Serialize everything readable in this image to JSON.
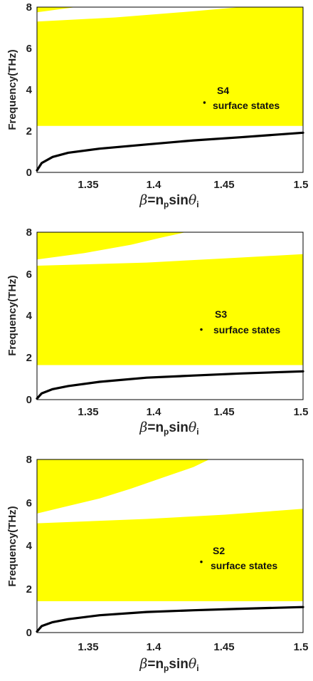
{
  "colors": {
    "band": "#ffff00",
    "curve": "#000000",
    "frame": "#000000"
  },
  "x_label": {
    "beta": "β",
    "eq": "=n",
    "p": "p",
    "sin": "sin",
    "theta": "θ",
    "i": "i"
  },
  "y_label": "Frequency(THz)",
  "x_ticks": [
    "1.35",
    "1.4",
    "1.45",
    "1.5"
  ],
  "y_ticks": [
    "0",
    "2",
    "4",
    "6",
    "8"
  ],
  "chart_data": [
    {
      "type": "area",
      "xlim": [
        1.33,
        1.5
      ],
      "ylim": [
        0,
        8
      ],
      "xlabel": "β=n_p sinθ_i",
      "ylabel": "Frequency(THz)",
      "annotation": {
        "title": "S4",
        "subtitle": "surface states",
        "point": [
          1.437,
          3.38
        ]
      },
      "bands": [
        {
          "lower": [
            [
              1.33,
              2.25
            ],
            [
              1.5,
              2.25
            ]
          ],
          "upper": [
            [
              1.33,
              7.3
            ],
            [
              1.38,
              7.5
            ],
            [
              1.43,
              7.8
            ],
            [
              1.46,
              8.0
            ],
            [
              1.5,
              8.0
            ]
          ]
        },
        {
          "lower": [
            [
              1.33,
              7.75
            ],
            [
              1.35,
              7.95
            ],
            [
              1.355,
              8.0
            ]
          ],
          "upper": [
            [
              1.33,
              8.0
            ],
            [
              1.355,
              8.0
            ]
          ]
        }
      ],
      "curve": [
        [
          1.33,
          0.1
        ],
        [
          1.333,
          0.45
        ],
        [
          1.34,
          0.75
        ],
        [
          1.35,
          0.95
        ],
        [
          1.37,
          1.15
        ],
        [
          1.4,
          1.35
        ],
        [
          1.43,
          1.55
        ],
        [
          1.46,
          1.7
        ],
        [
          1.5,
          1.92
        ]
      ]
    },
    {
      "type": "area",
      "xlim": [
        1.33,
        1.5
      ],
      "ylim": [
        0,
        8
      ],
      "xlabel": "β=n_p sinθ_i",
      "ylabel": "Frequency(THz)",
      "annotation": {
        "title": "S3",
        "subtitle": "surface states",
        "point": [
          1.435,
          3.35
        ]
      },
      "bands": [
        {
          "lower": [
            [
              1.33,
              1.65
            ],
            [
              1.5,
              1.65
            ]
          ],
          "upper": [
            [
              1.33,
              6.4
            ],
            [
              1.4,
              6.55
            ],
            [
              1.45,
              6.75
            ],
            [
              1.5,
              6.95
            ]
          ]
        },
        {
          "lower": [
            [
              1.33,
              6.7
            ],
            [
              1.36,
              7.0
            ],
            [
              1.39,
              7.4
            ],
            [
              1.41,
              7.75
            ],
            [
              1.425,
              8.0
            ]
          ],
          "upper": [
            [
              1.33,
              8.0
            ],
            [
              1.425,
              8.0
            ]
          ]
        }
      ],
      "curve": [
        [
          1.33,
          0.05
        ],
        [
          1.333,
          0.3
        ],
        [
          1.34,
          0.5
        ],
        [
          1.35,
          0.65
        ],
        [
          1.37,
          0.85
        ],
        [
          1.4,
          1.05
        ],
        [
          1.43,
          1.15
        ],
        [
          1.46,
          1.25
        ],
        [
          1.5,
          1.35
        ]
      ]
    },
    {
      "type": "area",
      "xlim": [
        1.33,
        1.5
      ],
      "ylim": [
        0,
        8
      ],
      "xlabel": "β=n_p sinθ_i",
      "ylabel": "Frequency(THz)",
      "annotation": {
        "title": "S2",
        "subtitle": "surface states",
        "point": [
          1.435,
          3.27
        ]
      },
      "bands": [
        {
          "lower": [
            [
              1.33,
              1.45
            ],
            [
              1.5,
              1.45
            ]
          ],
          "upper": [
            [
              1.33,
              5.05
            ],
            [
              1.4,
              5.25
            ],
            [
              1.45,
              5.45
            ],
            [
              1.5,
              5.72
            ]
          ]
        },
        {
          "lower": [
            [
              1.33,
              5.5
            ],
            [
              1.35,
              5.85
            ],
            [
              1.37,
              6.2
            ],
            [
              1.39,
              6.65
            ],
            [
              1.41,
              7.15
            ],
            [
              1.43,
              7.65
            ],
            [
              1.44,
              8.0
            ]
          ],
          "upper": [
            [
              1.33,
              8.0
            ],
            [
              1.44,
              8.0
            ]
          ]
        }
      ],
      "curve": [
        [
          1.33,
          0.05
        ],
        [
          1.333,
          0.3
        ],
        [
          1.34,
          0.48
        ],
        [
          1.35,
          0.62
        ],
        [
          1.37,
          0.8
        ],
        [
          1.4,
          0.95
        ],
        [
          1.43,
          1.03
        ],
        [
          1.46,
          1.1
        ],
        [
          1.5,
          1.18
        ]
      ]
    }
  ]
}
